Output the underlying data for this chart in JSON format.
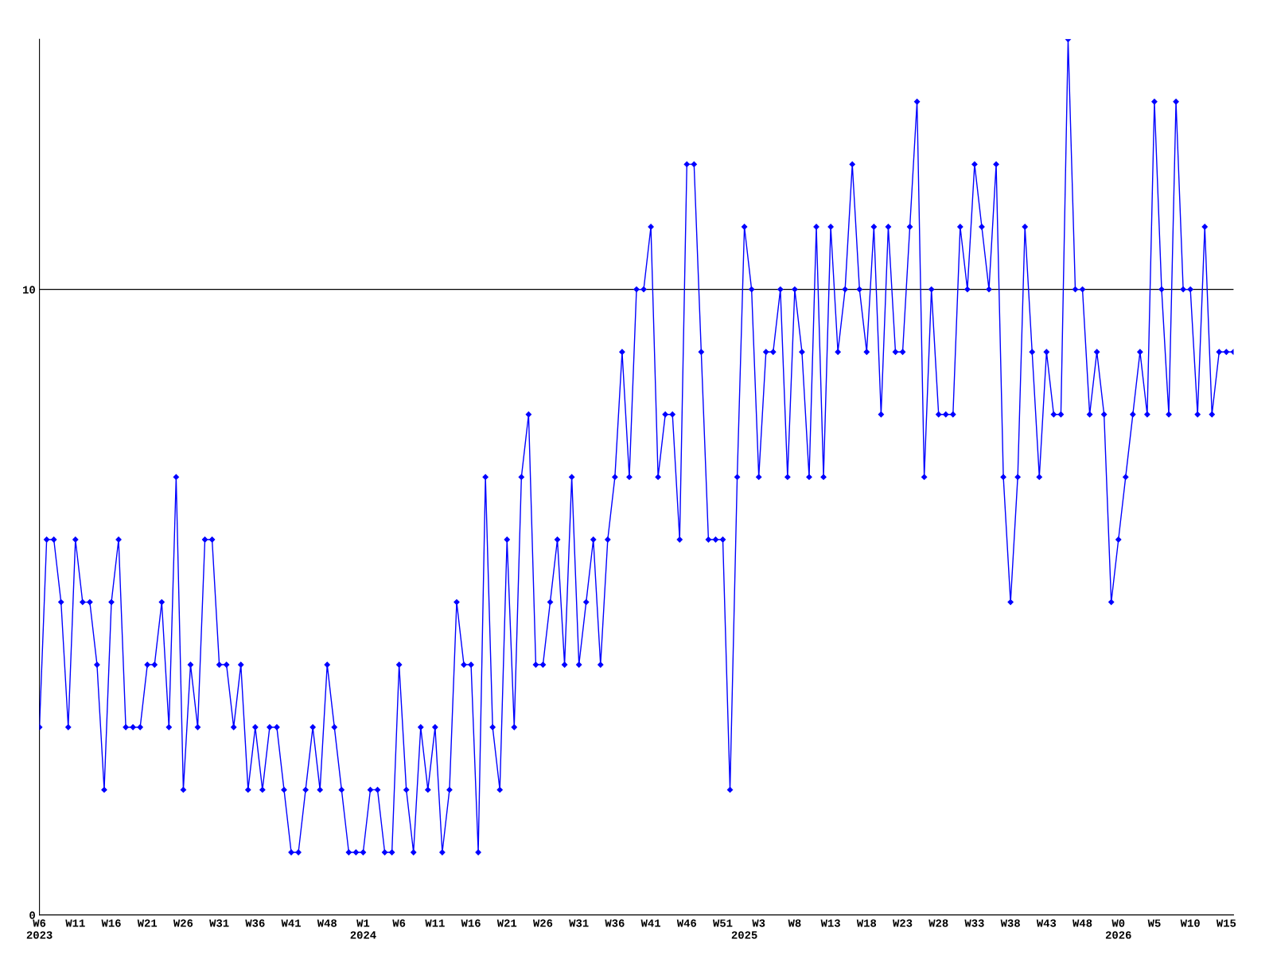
{
  "chart_data": {
    "type": "line",
    "categories": [
      "W6\n2023",
      null,
      null,
      null,
      null,
      "W11",
      null,
      null,
      null,
      null,
      "W16",
      null,
      null,
      null,
      null,
      "W21",
      null,
      null,
      null,
      null,
      "W26",
      null,
      null,
      null,
      null,
      "W31",
      null,
      null,
      null,
      null,
      "W36",
      null,
      null,
      null,
      null,
      "W41",
      null,
      null,
      null,
      null,
      "W48",
      null,
      null,
      null,
      null,
      "W1\n2024",
      null,
      null,
      null,
      null,
      "W6",
      null,
      null,
      null,
      null,
      "W11",
      null,
      null,
      null,
      null,
      "W16",
      null,
      null,
      null,
      null,
      "W21",
      null,
      null,
      null,
      null,
      "W26",
      null,
      null,
      null,
      null,
      "W31",
      null,
      null,
      null,
      null,
      "W36",
      null,
      null,
      null,
      null,
      "W41",
      null,
      null,
      null,
      null,
      "W46",
      null,
      null,
      null,
      null,
      "W51",
      null,
      null,
      "\n2025",
      null,
      "W3",
      null,
      null,
      null,
      null,
      "W8",
      null,
      null,
      null,
      null,
      "W13",
      null,
      null,
      null,
      null,
      "W18",
      null,
      null,
      null,
      null,
      "W23",
      null,
      null,
      null,
      null,
      "W28",
      null,
      null,
      null,
      null,
      "W33",
      null,
      null,
      null,
      null,
      "W38",
      null,
      null,
      null,
      null,
      "W43",
      null,
      null,
      null,
      null,
      "W48",
      null,
      null,
      null,
      null,
      "W0\n2026",
      null,
      null,
      null,
      null,
      "W5",
      null,
      null,
      null,
      null,
      "W10",
      null,
      null,
      null,
      null,
      "W15",
      null
    ],
    "series": [
      {
        "color": "#0000ff",
        "values": [
          3,
          6,
          6,
          5,
          3,
          6,
          5,
          5,
          4,
          2,
          5,
          6,
          3,
          3,
          3,
          4,
          4,
          5,
          3,
          7,
          2,
          4,
          3,
          6,
          6,
          4,
          4,
          3,
          4,
          2,
          3,
          2,
          3,
          3,
          2,
          1,
          1,
          2,
          3,
          2,
          4,
          3,
          2,
          1,
          1,
          1,
          2,
          2,
          1,
          1,
          4,
          2,
          1,
          3,
          2,
          3,
          1,
          2,
          5,
          4,
          4,
          1,
          7,
          3,
          2,
          6,
          3,
          7,
          8,
          4,
          4,
          5,
          6,
          4,
          7,
          4,
          5,
          6,
          4,
          6,
          7,
          9,
          7,
          10,
          10,
          11,
          7,
          8,
          8,
          6,
          12,
          12,
          9,
          6,
          6,
          6,
          2,
          7,
          11,
          10,
          7,
          9,
          9,
          10,
          7,
          10,
          9,
          7,
          11,
          7,
          11,
          9,
          10,
          12,
          10,
          9,
          11,
          8,
          11,
          9,
          9,
          11,
          13,
          7,
          10,
          8,
          8,
          8,
          11,
          10,
          12,
          11,
          10,
          12,
          7,
          5,
          7,
          11,
          9,
          7,
          9,
          8,
          8,
          14,
          10,
          10,
          8,
          9,
          8,
          5,
          6,
          7,
          8,
          9,
          8,
          13,
          10,
          8,
          13,
          10,
          10,
          8,
          11,
          8,
          9,
          9,
          9
        ]
      }
    ],
    "ylim": [
      0,
      14
    ],
    "yticks": [
      0,
      10
    ],
    "grid": "y",
    "marker": "diamond",
    "line_style": "solid"
  }
}
